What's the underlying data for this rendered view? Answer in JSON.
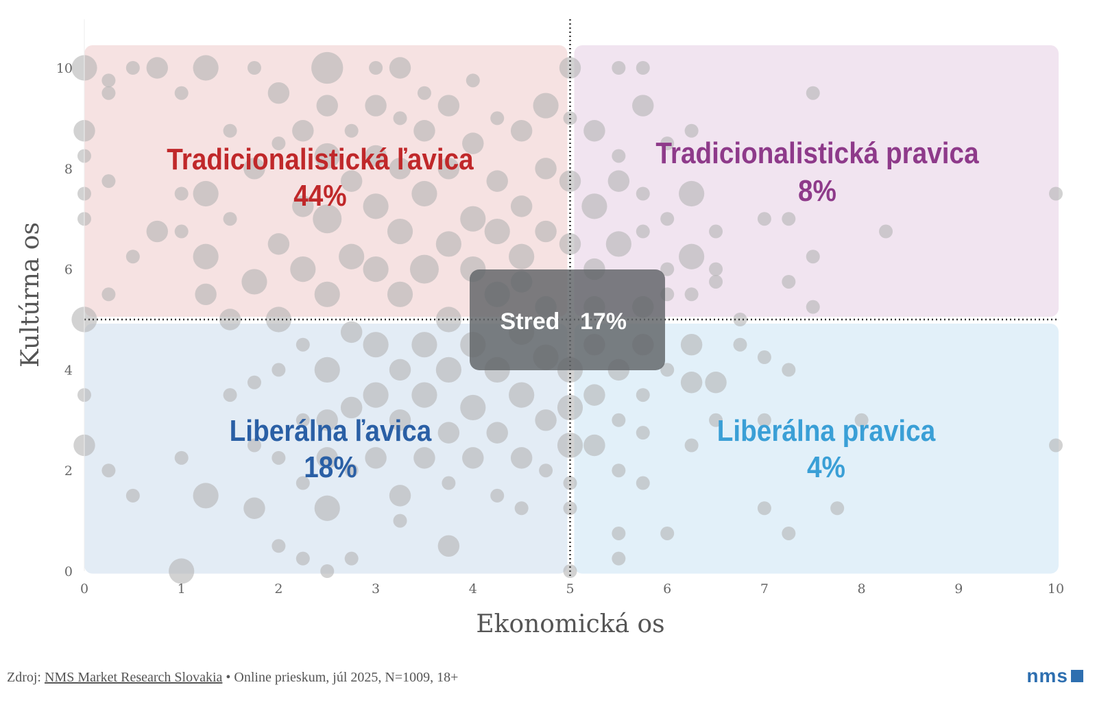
{
  "chart_data": {
    "type": "scatter",
    "xlabel": "Ekonomická os",
    "ylabel": "Kultúrna os",
    "xlim": [
      0,
      10
    ],
    "ylim": [
      0,
      10
    ],
    "xticks": [
      "0",
      "1",
      "2",
      "3",
      "4",
      "5",
      "6",
      "7",
      "8",
      "9",
      "10"
    ],
    "yticks": [
      "0",
      "2",
      "4",
      "6",
      "8",
      "10"
    ],
    "grid": false,
    "reference_lines": {
      "x": 5,
      "y": 5
    },
    "bubble_color": "#b4b4b4",
    "quadrants": [
      {
        "name": "Tradicionalistická ľavica",
        "value": "44%",
        "color": "#c0282a",
        "fill": "#f6e2e2"
      },
      {
        "name": "Tradicionalistická pravica",
        "value": "8%",
        "color": "#8e3a8a",
        "fill": "#f1e4f0"
      },
      {
        "name": "Liberálna ľavica",
        "value": "18%",
        "color": "#2a5fa5",
        "fill": "#e3ecf5"
      },
      {
        "name": "Liberálna pravica",
        "value": "4%",
        "color": "#3a9fd6",
        "fill": "#e2f0f9"
      }
    ],
    "center": {
      "name": "Stred",
      "value": "17%",
      "fill": "#5f6367"
    },
    "points": [
      [
        0,
        10,
        3
      ],
      [
        0.25,
        9.75,
        1
      ],
      [
        0.25,
        9.5,
        1
      ],
      [
        0.5,
        10,
        1
      ],
      [
        0.75,
        10,
        2
      ],
      [
        1,
        9.5,
        1
      ],
      [
        1.25,
        10,
        3
      ],
      [
        1.75,
        10,
        1
      ],
      [
        2.5,
        10,
        5
      ],
      [
        3,
        10,
        1
      ],
      [
        3.25,
        10,
        2
      ],
      [
        5,
        10,
        2
      ],
      [
        5.5,
        10,
        1
      ],
      [
        5.75,
        10,
        1
      ],
      [
        7.5,
        9.5,
        1
      ],
      [
        5.75,
        9.25,
        2
      ],
      [
        0,
        8.75,
        2
      ],
      [
        0,
        8.25,
        1
      ],
      [
        0,
        7.5,
        1
      ],
      [
        0,
        7,
        1
      ],
      [
        5.25,
        8.75,
        2
      ],
      [
        0.25,
        7.75,
        1
      ],
      [
        10,
        7.5,
        1
      ],
      [
        8.25,
        6.75,
        1
      ],
      [
        7,
        7,
        1
      ],
      [
        7.25,
        7,
        1
      ],
      [
        6.25,
        7.5,
        3
      ],
      [
        7.5,
        6.25,
        1
      ],
      [
        7.25,
        5.75,
        1
      ],
      [
        7.5,
        5.25,
        1
      ],
      [
        0,
        5,
        3
      ],
      [
        0.25,
        5.5,
        1
      ],
      [
        0.5,
        6.25,
        1
      ],
      [
        0.75,
        6.75,
        2
      ],
      [
        0,
        3.5,
        1
      ],
      [
        0,
        2.5,
        2
      ],
      [
        0.25,
        2,
        1
      ],
      [
        0.5,
        1.5,
        1
      ],
      [
        1,
        0,
        3
      ],
      [
        1,
        2.25,
        1
      ],
      [
        1.25,
        1.5,
        3
      ],
      [
        1.75,
        1.25,
        2
      ],
      [
        2,
        0.5,
        1
      ],
      [
        2.25,
        0.25,
        1
      ],
      [
        2.5,
        0,
        1
      ],
      [
        2.75,
        0.25,
        1
      ],
      [
        2.5,
        1.25,
        3
      ],
      [
        3.75,
        0.5,
        2
      ],
      [
        3.25,
        1,
        1
      ],
      [
        4.5,
        1.25,
        1
      ],
      [
        5,
        1.25,
        1
      ],
      [
        5,
        0,
        1
      ],
      [
        5.5,
        0.25,
        1
      ],
      [
        5.5,
        0.75,
        1
      ],
      [
        6,
        0.75,
        1
      ],
      [
        7,
        1.25,
        1
      ],
      [
        7.25,
        0.75,
        1
      ],
      [
        7.75,
        1.25,
        1
      ],
      [
        8,
        3,
        1
      ],
      [
        10,
        2.5,
        1
      ],
      [
        7,
        4.25,
        1
      ],
      [
        7.25,
        4,
        1
      ],
      [
        6.75,
        4.5,
        1
      ],
      [
        6.5,
        3.75,
        2
      ],
      [
        6.25,
        3.75,
        2
      ],
      [
        5.75,
        2.75,
        1
      ],
      [
        6.25,
        2.5,
        1
      ],
      [
        5,
        2.5,
        3
      ],
      [
        5.75,
        1.75,
        1
      ],
      [
        5.25,
        2.5,
        2
      ],
      [
        1,
        6.75,
        1
      ],
      [
        1,
        7.5,
        1
      ],
      [
        1.25,
        7.5,
        3
      ],
      [
        1.25,
        6.25,
        3
      ],
      [
        1.25,
        5.5,
        2
      ],
      [
        1.5,
        8.75,
        1
      ],
      [
        1.5,
        7,
        1
      ],
      [
        1.5,
        5,
        2
      ],
      [
        1.5,
        3.5,
        1
      ],
      [
        1.75,
        5.75,
        3
      ],
      [
        1.75,
        8,
        2
      ],
      [
        1.75,
        3.75,
        1
      ],
      [
        1.75,
        2.5,
        1
      ],
      [
        2,
        9.5,
        2
      ],
      [
        2,
        8.5,
        1
      ],
      [
        2,
        6.5,
        2
      ],
      [
        2,
        4,
        1
      ],
      [
        2,
        5,
        3
      ],
      [
        2,
        2.25,
        1
      ],
      [
        2.25,
        7.25,
        2
      ],
      [
        2.25,
        6,
        3
      ],
      [
        2.25,
        4.5,
        1
      ],
      [
        2.25,
        3,
        1
      ],
      [
        2.25,
        1.75,
        1
      ],
      [
        2.25,
        8.75,
        2
      ],
      [
        2.5,
        7,
        4
      ],
      [
        2.5,
        8.25,
        3
      ],
      [
        2.5,
        5.5,
        3
      ],
      [
        2.5,
        4,
        3
      ],
      [
        2.5,
        3,
        2
      ],
      [
        2.5,
        2.25,
        2
      ],
      [
        2.5,
        9.25,
        2
      ],
      [
        2.75,
        6.25,
        3
      ],
      [
        2.75,
        7.75,
        2
      ],
      [
        2.75,
        4.75,
        2
      ],
      [
        2.75,
        3.25,
        2
      ],
      [
        2.75,
        2,
        1
      ],
      [
        2.75,
        8.75,
        1
      ],
      [
        3,
        6,
        3
      ],
      [
        3,
        7.25,
        3
      ],
      [
        3,
        8.25,
        2
      ],
      [
        3,
        4.5,
        3
      ],
      [
        3,
        3.5,
        3
      ],
      [
        3,
        2.25,
        2
      ],
      [
        3,
        9.25,
        2
      ],
      [
        3.25,
        5.5,
        3
      ],
      [
        3.25,
        6.75,
        3
      ],
      [
        3.25,
        8,
        2
      ],
      [
        3.25,
        4,
        2
      ],
      [
        3.25,
        3,
        2
      ],
      [
        3.25,
        1.5,
        2
      ],
      [
        3.25,
        9,
        1
      ],
      [
        3.5,
        6,
        4
      ],
      [
        3.5,
        7.5,
        3
      ],
      [
        3.5,
        4.5,
        3
      ],
      [
        3.5,
        3.5,
        3
      ],
      [
        3.5,
        2.25,
        2
      ],
      [
        3.5,
        8.75,
        2
      ],
      [
        3.5,
        9.5,
        1
      ],
      [
        3.75,
        5,
        3
      ],
      [
        3.75,
        6.5,
        3
      ],
      [
        3.75,
        8,
        2
      ],
      [
        3.75,
        4,
        3
      ],
      [
        3.75,
        2.75,
        2
      ],
      [
        3.75,
        1.75,
        1
      ],
      [
        3.75,
        9.25,
        2
      ],
      [
        4,
        6,
        3
      ],
      [
        4,
        7,
        3
      ],
      [
        4,
        4.5,
        3
      ],
      [
        4,
        3.25,
        3
      ],
      [
        4,
        2.25,
        2
      ],
      [
        4,
        8.5,
        2
      ],
      [
        4,
        9.75,
        1
      ],
      [
        4.25,
        5.5,
        3
      ],
      [
        4.25,
        6.75,
        3
      ],
      [
        4.25,
        7.75,
        2
      ],
      [
        4.25,
        4,
        3
      ],
      [
        4.25,
        2.75,
        2
      ],
      [
        4.25,
        1.5,
        1
      ],
      [
        4.25,
        9,
        1
      ],
      [
        4.5,
        6.25,
        3
      ],
      [
        4.5,
        7.25,
        2
      ],
      [
        4.5,
        4.75,
        3
      ],
      [
        4.5,
        3.5,
        3
      ],
      [
        4.5,
        2.25,
        2
      ],
      [
        4.5,
        8.75,
        2
      ],
      [
        4.5,
        5.75,
        2
      ],
      [
        4.75,
        5.25,
        2
      ],
      [
        4.75,
        6.75,
        2
      ],
      [
        4.75,
        4.25,
        3
      ],
      [
        4.75,
        3,
        2
      ],
      [
        4.75,
        9.25,
        3
      ],
      [
        4.75,
        8,
        2
      ],
      [
        4.75,
        2,
        1
      ],
      [
        5,
        6.5,
        2
      ],
      [
        5,
        7.75,
        2
      ],
      [
        5,
        4,
        3
      ],
      [
        5,
        3.25,
        3
      ],
      [
        5,
        1.75,
        1
      ],
      [
        5,
        9,
        1
      ],
      [
        5.25,
        7.25,
        3
      ],
      [
        5.25,
        6,
        2
      ],
      [
        5.25,
        4.5,
        2
      ],
      [
        5.25,
        3.5,
        2
      ],
      [
        5.25,
        5.25,
        2
      ],
      [
        5.5,
        7.75,
        2
      ],
      [
        5.5,
        6.5,
        3
      ],
      [
        5.5,
        4,
        2
      ],
      [
        5.5,
        3,
        1
      ],
      [
        5.5,
        8.25,
        1
      ],
      [
        5.5,
        2,
        1
      ],
      [
        5.75,
        5.25,
        2
      ],
      [
        5.75,
        7.5,
        1
      ],
      [
        5.75,
        6.75,
        1
      ],
      [
        5.75,
        3.5,
        1
      ],
      [
        5.75,
        4.5,
        2
      ],
      [
        6,
        6,
        1
      ],
      [
        6,
        5.5,
        1
      ],
      [
        6,
        8.5,
        1
      ],
      [
        6,
        7,
        1
      ],
      [
        6,
        4,
        1
      ],
      [
        6.25,
        6.25,
        3
      ],
      [
        6.25,
        8.75,
        1
      ],
      [
        6.25,
        4.5,
        2
      ],
      [
        6.25,
        5.5,
        1
      ],
      [
        6.5,
        6.75,
        1
      ],
      [
        6.5,
        6,
        1
      ],
      [
        6.5,
        5.75,
        1
      ],
      [
        6.5,
        3,
        1
      ],
      [
        6.75,
        5,
        1
      ],
      [
        7,
        3,
        1
      ]
    ]
  },
  "footer": {
    "source_prefix": "Zdroj: ",
    "source_link": "NMS Market Research Slovakia",
    "source_suffix": " • Online prieskum, júl 2025, N=1009, 18+",
    "logo": "nms"
  }
}
